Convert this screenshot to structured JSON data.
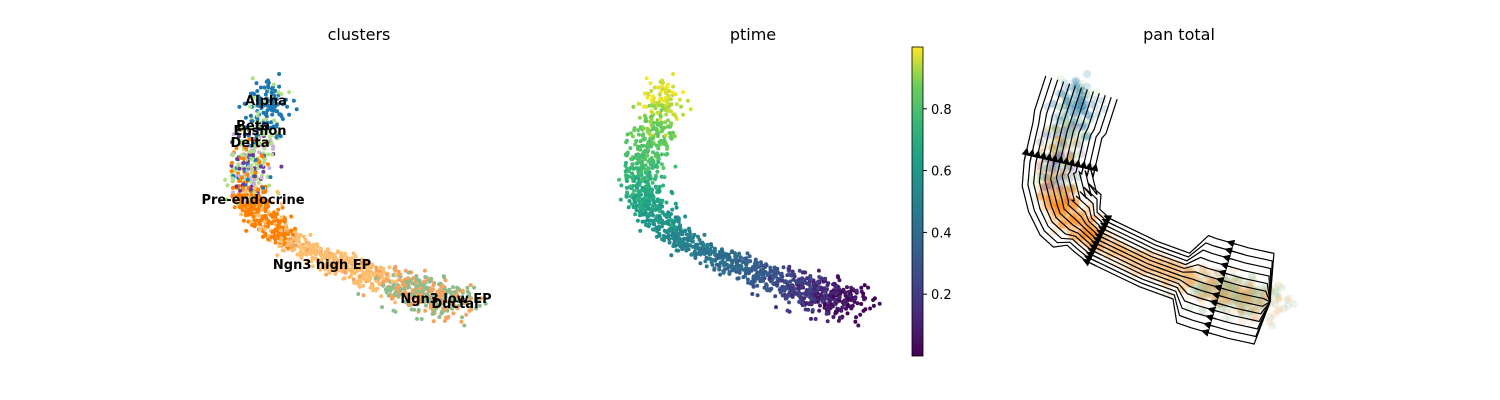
{
  "chart_data": [
    {
      "type": "scatter",
      "title": "clusters",
      "grid": false,
      "legend": "on data",
      "colors": {
        "Ductal": "#8fbc8f",
        "Ngn3 low EP": "#f4a460",
        "Ngn3 high EP": "#fdbf6f",
        "Pre-endocrine": "#ff7f00",
        "Beta": "#b2df8a",
        "Alpha": "#1f78b4",
        "Delta": "#6a3d9a",
        "Epsilon": "#cab2d6"
      },
      "labels": [
        {
          "text": "Alpha"
        },
        {
          "text": "Beta"
        },
        {
          "text": "Epsilon"
        },
        {
          "text": "Delta"
        },
        {
          "text": "Pre-endocrine"
        },
        {
          "text": "Ngn3 high EP"
        },
        {
          "text": "Ngn3 low EP"
        },
        {
          "text": "Ductal"
        }
      ]
    },
    {
      "type": "scatter",
      "title": "ptime",
      "grid": false,
      "colormap": "viridis",
      "colorbar": {
        "range": [
          0,
          1
        ],
        "ticks": [
          0.2,
          0.4,
          0.6,
          0.8
        ],
        "tick_labels": [
          "0.2",
          "0.4",
          "0.6",
          "0.8"
        ]
      }
    },
    {
      "type": "scatter",
      "title": "pan total",
      "grid": false,
      "overlay": "streamlines"
    }
  ]
}
